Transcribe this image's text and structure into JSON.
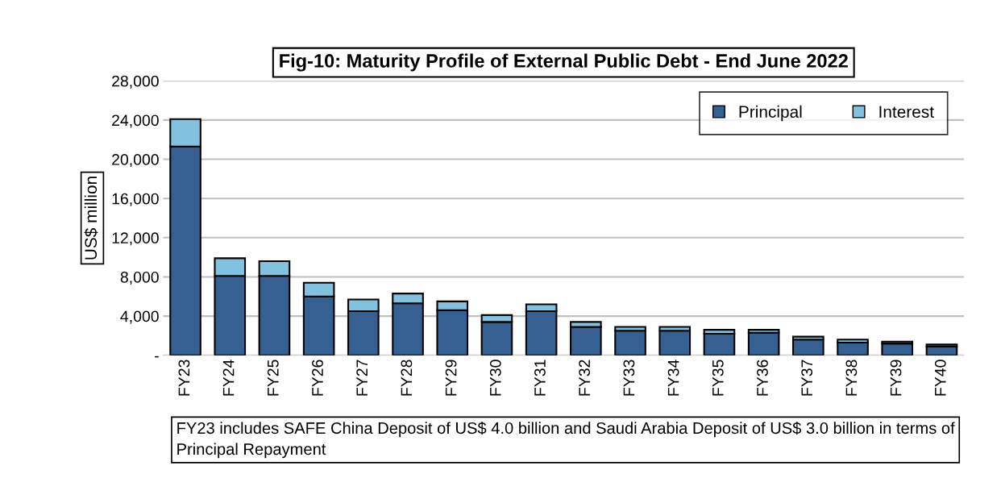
{
  "chart_data": {
    "type": "bar",
    "stacked": true,
    "title": "Fig-10: Maturity Profile of External Public Debt - End June 2022",
    "ylabel": "US$ million",
    "categories": [
      "FY23",
      "FY24",
      "FY25",
      "FY26",
      "FY27",
      "FY28",
      "FY29",
      "FY30",
      "FY31",
      "FY32",
      "FY33",
      "FY34",
      "FY35",
      "FY36",
      "FY37",
      "FY38",
      "FY39",
      "FY40"
    ],
    "series": [
      {
        "name": "Principal",
        "color": "#376092",
        "values": [
          21300,
          8100,
          8100,
          6000,
          4500,
          5300,
          4600,
          3400,
          4500,
          2900,
          2500,
          2500,
          2200,
          2300,
          1600,
          1300,
          1200,
          900
        ]
      },
      {
        "name": "Interest",
        "color": "#82c2df",
        "values": [
          2800,
          1800,
          1500,
          1400,
          1200,
          1000,
          900,
          700,
          700,
          500,
          400,
          400,
          400,
          300,
          300,
          300,
          200,
          200
        ]
      }
    ],
    "ylim": [
      0,
      28000
    ],
    "yticks": [
      {
        "value": 0,
        "label": "-"
      },
      {
        "value": 4000,
        "label": "4,000"
      },
      {
        "value": 8000,
        "label": "8,000"
      },
      {
        "value": 12000,
        "label": "12,000"
      },
      {
        "value": 16000,
        "label": "16,000"
      },
      {
        "value": 20000,
        "label": "20,000"
      },
      {
        "value": 24000,
        "label": "24,000"
      },
      {
        "value": 28000,
        "label": "28,000"
      }
    ],
    "grid": "y",
    "legend": "top right",
    "annotations": [
      "FY23 includes SAFE China Deposit of US$ 4.0 billion and Saudi Arabia Deposit of US$ 3.0 billion in terms of Principal Repayment"
    ]
  }
}
